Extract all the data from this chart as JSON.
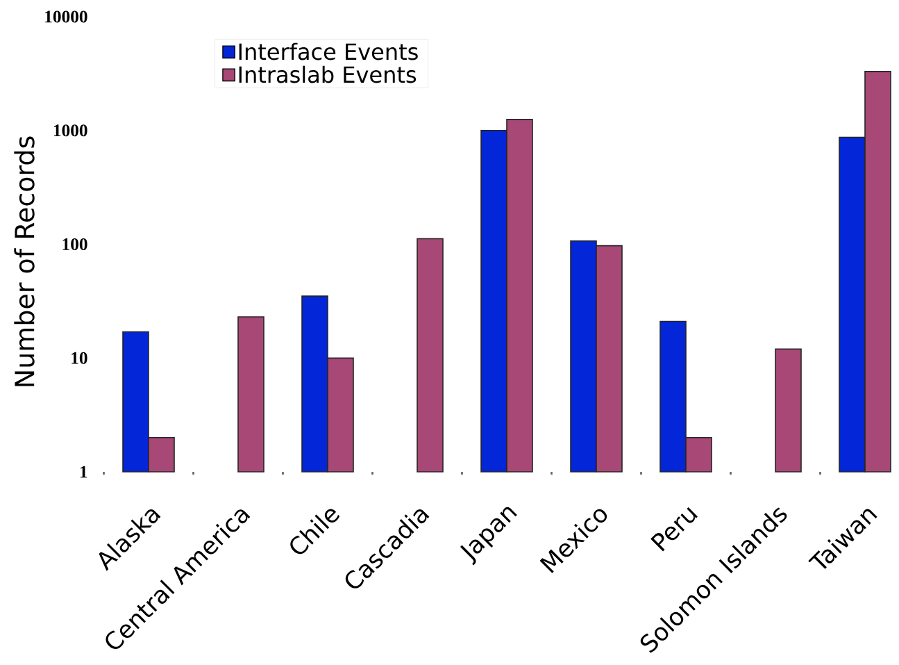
{
  "chart_data": {
    "type": "bar",
    "ylabel": "Number of Records",
    "categories": [
      "Alaska",
      "Central America",
      "Chile",
      "Cascadia",
      "Japan",
      "Mexico",
      "Peru",
      "Solomon Islands",
      "Taiwan"
    ],
    "series": [
      {
        "name": "Interface Events",
        "color": "#0326d8",
        "values": [
          17,
          null,
          35,
          null,
          1000,
          107,
          21,
          null,
          870
        ]
      },
      {
        "name": "Intraslab Events",
        "color": "#a84876",
        "values": [
          2,
          23,
          10,
          112,
          1250,
          97,
          2,
          12,
          3300
        ]
      }
    ],
    "log": true,
    "ylim": [
      1,
      10000
    ],
    "yticks": [
      1,
      10,
      100,
      1000,
      10000
    ],
    "legend": "top left"
  }
}
